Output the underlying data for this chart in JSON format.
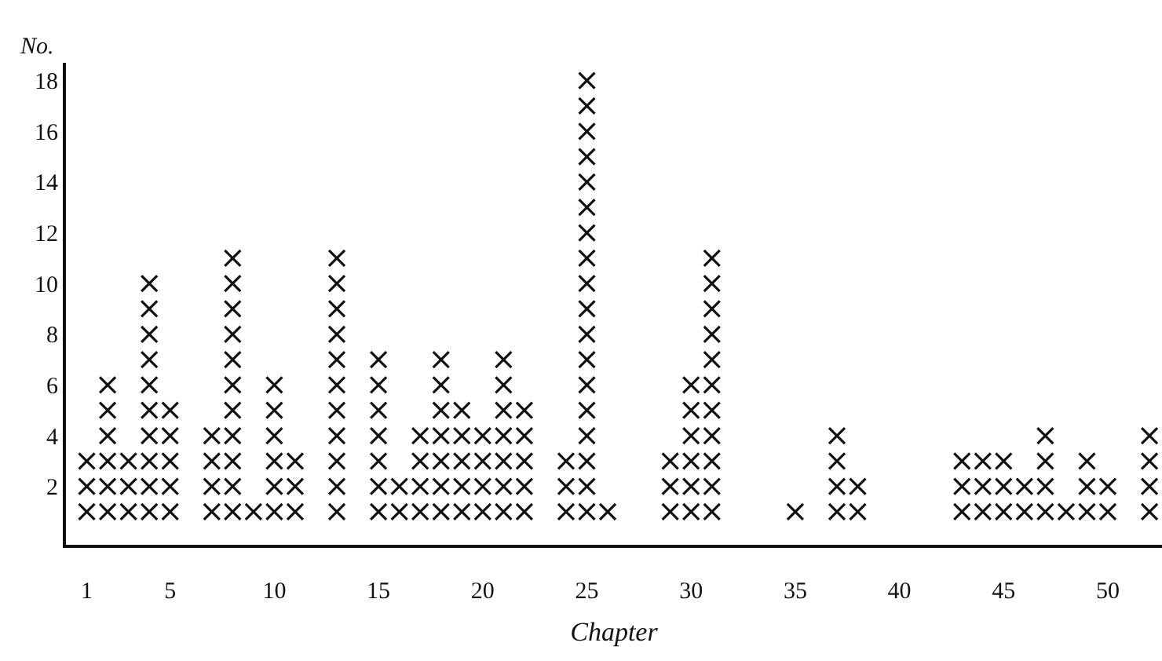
{
  "chart_data": {
    "type": "scatter",
    "xlabel": "Chapter",
    "ylabel": "No.",
    "x": [
      1,
      1,
      1,
      2,
      2,
      2,
      2,
      2,
      2,
      3,
      3,
      3,
      4,
      4,
      4,
      4,
      4,
      4,
      4,
      4,
      4,
      4,
      5,
      5,
      5,
      5,
      5,
      7,
      7,
      7,
      7,
      8,
      8,
      8,
      8,
      8,
      8,
      8,
      8,
      8,
      8,
      8,
      9,
      10,
      10,
      10,
      10,
      10,
      10,
      11,
      11,
      11,
      13,
      13,
      13,
      13,
      13,
      13,
      13,
      13,
      13,
      13,
      13,
      15,
      15,
      15,
      15,
      15,
      15,
      15,
      16,
      16,
      17,
      17,
      17,
      17,
      18,
      18,
      18,
      18,
      18,
      18,
      18,
      19,
      19,
      19,
      19,
      19,
      20,
      20,
      20,
      20,
      21,
      21,
      21,
      21,
      21,
      21,
      21,
      22,
      22,
      22,
      22,
      22,
      24,
      24,
      24,
      25,
      25,
      25,
      25,
      25,
      25,
      25,
      25,
      25,
      25,
      25,
      25,
      25,
      25,
      25,
      25,
      25,
      25,
      26,
      29,
      29,
      29,
      30,
      30,
      30,
      30,
      30,
      30,
      31,
      31,
      31,
      31,
      31,
      31,
      31,
      31,
      31,
      31,
      31,
      35,
      37,
      37,
      37,
      37,
      38,
      38,
      43,
      43,
      43,
      44,
      44,
      44,
      45,
      45,
      45,
      46,
      46,
      47,
      47,
      47,
      47,
      48,
      49,
      49,
      49,
      50,
      50,
      52,
      52,
      52,
      52
    ],
    "values": [
      1,
      2,
      3,
      1,
      2,
      3,
      4,
      5,
      6,
      1,
      2,
      3,
      1,
      2,
      3,
      4,
      5,
      6,
      7,
      8,
      9,
      10,
      1,
      2,
      3,
      4,
      5,
      1,
      2,
      3,
      4,
      1,
      2,
      3,
      4,
      5,
      6,
      7,
      8,
      9,
      10,
      11,
      1,
      1,
      2,
      3,
      4,
      5,
      6,
      1,
      2,
      3,
      1,
      2,
      3,
      4,
      5,
      6,
      7,
      8,
      9,
      10,
      11,
      1,
      2,
      3,
      4,
      5,
      6,
      7,
      1,
      2,
      1,
      2,
      3,
      4,
      1,
      2,
      3,
      4,
      5,
      6,
      7,
      1,
      2,
      3,
      4,
      5,
      1,
      2,
      3,
      4,
      1,
      2,
      3,
      4,
      5,
      6,
      7,
      1,
      2,
      3,
      4,
      5,
      1,
      2,
      3,
      1,
      2,
      3,
      4,
      5,
      6,
      7,
      8,
      9,
      10,
      11,
      12,
      13,
      14,
      15,
      16,
      17,
      18,
      1,
      1,
      2,
      3,
      1,
      2,
      3,
      4,
      5,
      6,
      1,
      2,
      3,
      4,
      5,
      6,
      7,
      8,
      9,
      10,
      11,
      1,
      1,
      2,
      3,
      4,
      1,
      2,
      1,
      2,
      3,
      1,
      2,
      3,
      1,
      2,
      3,
      1,
      2,
      1,
      2,
      3,
      4,
      1,
      1,
      2,
      3,
      1,
      2,
      1,
      2,
      3,
      4
    ],
    "color": "#111111",
    "marker": "cross",
    "xlim": [
      0,
      52.6
    ],
    "xticks": [
      1,
      5,
      10,
      15,
      20,
      25,
      30,
      35,
      40,
      45,
      50
    ],
    "ylim": [
      -0.3,
      18.7
    ],
    "yticks": [
      2,
      4,
      6,
      8,
      10,
      12,
      14,
      16,
      18
    ],
    "grid": false
  }
}
